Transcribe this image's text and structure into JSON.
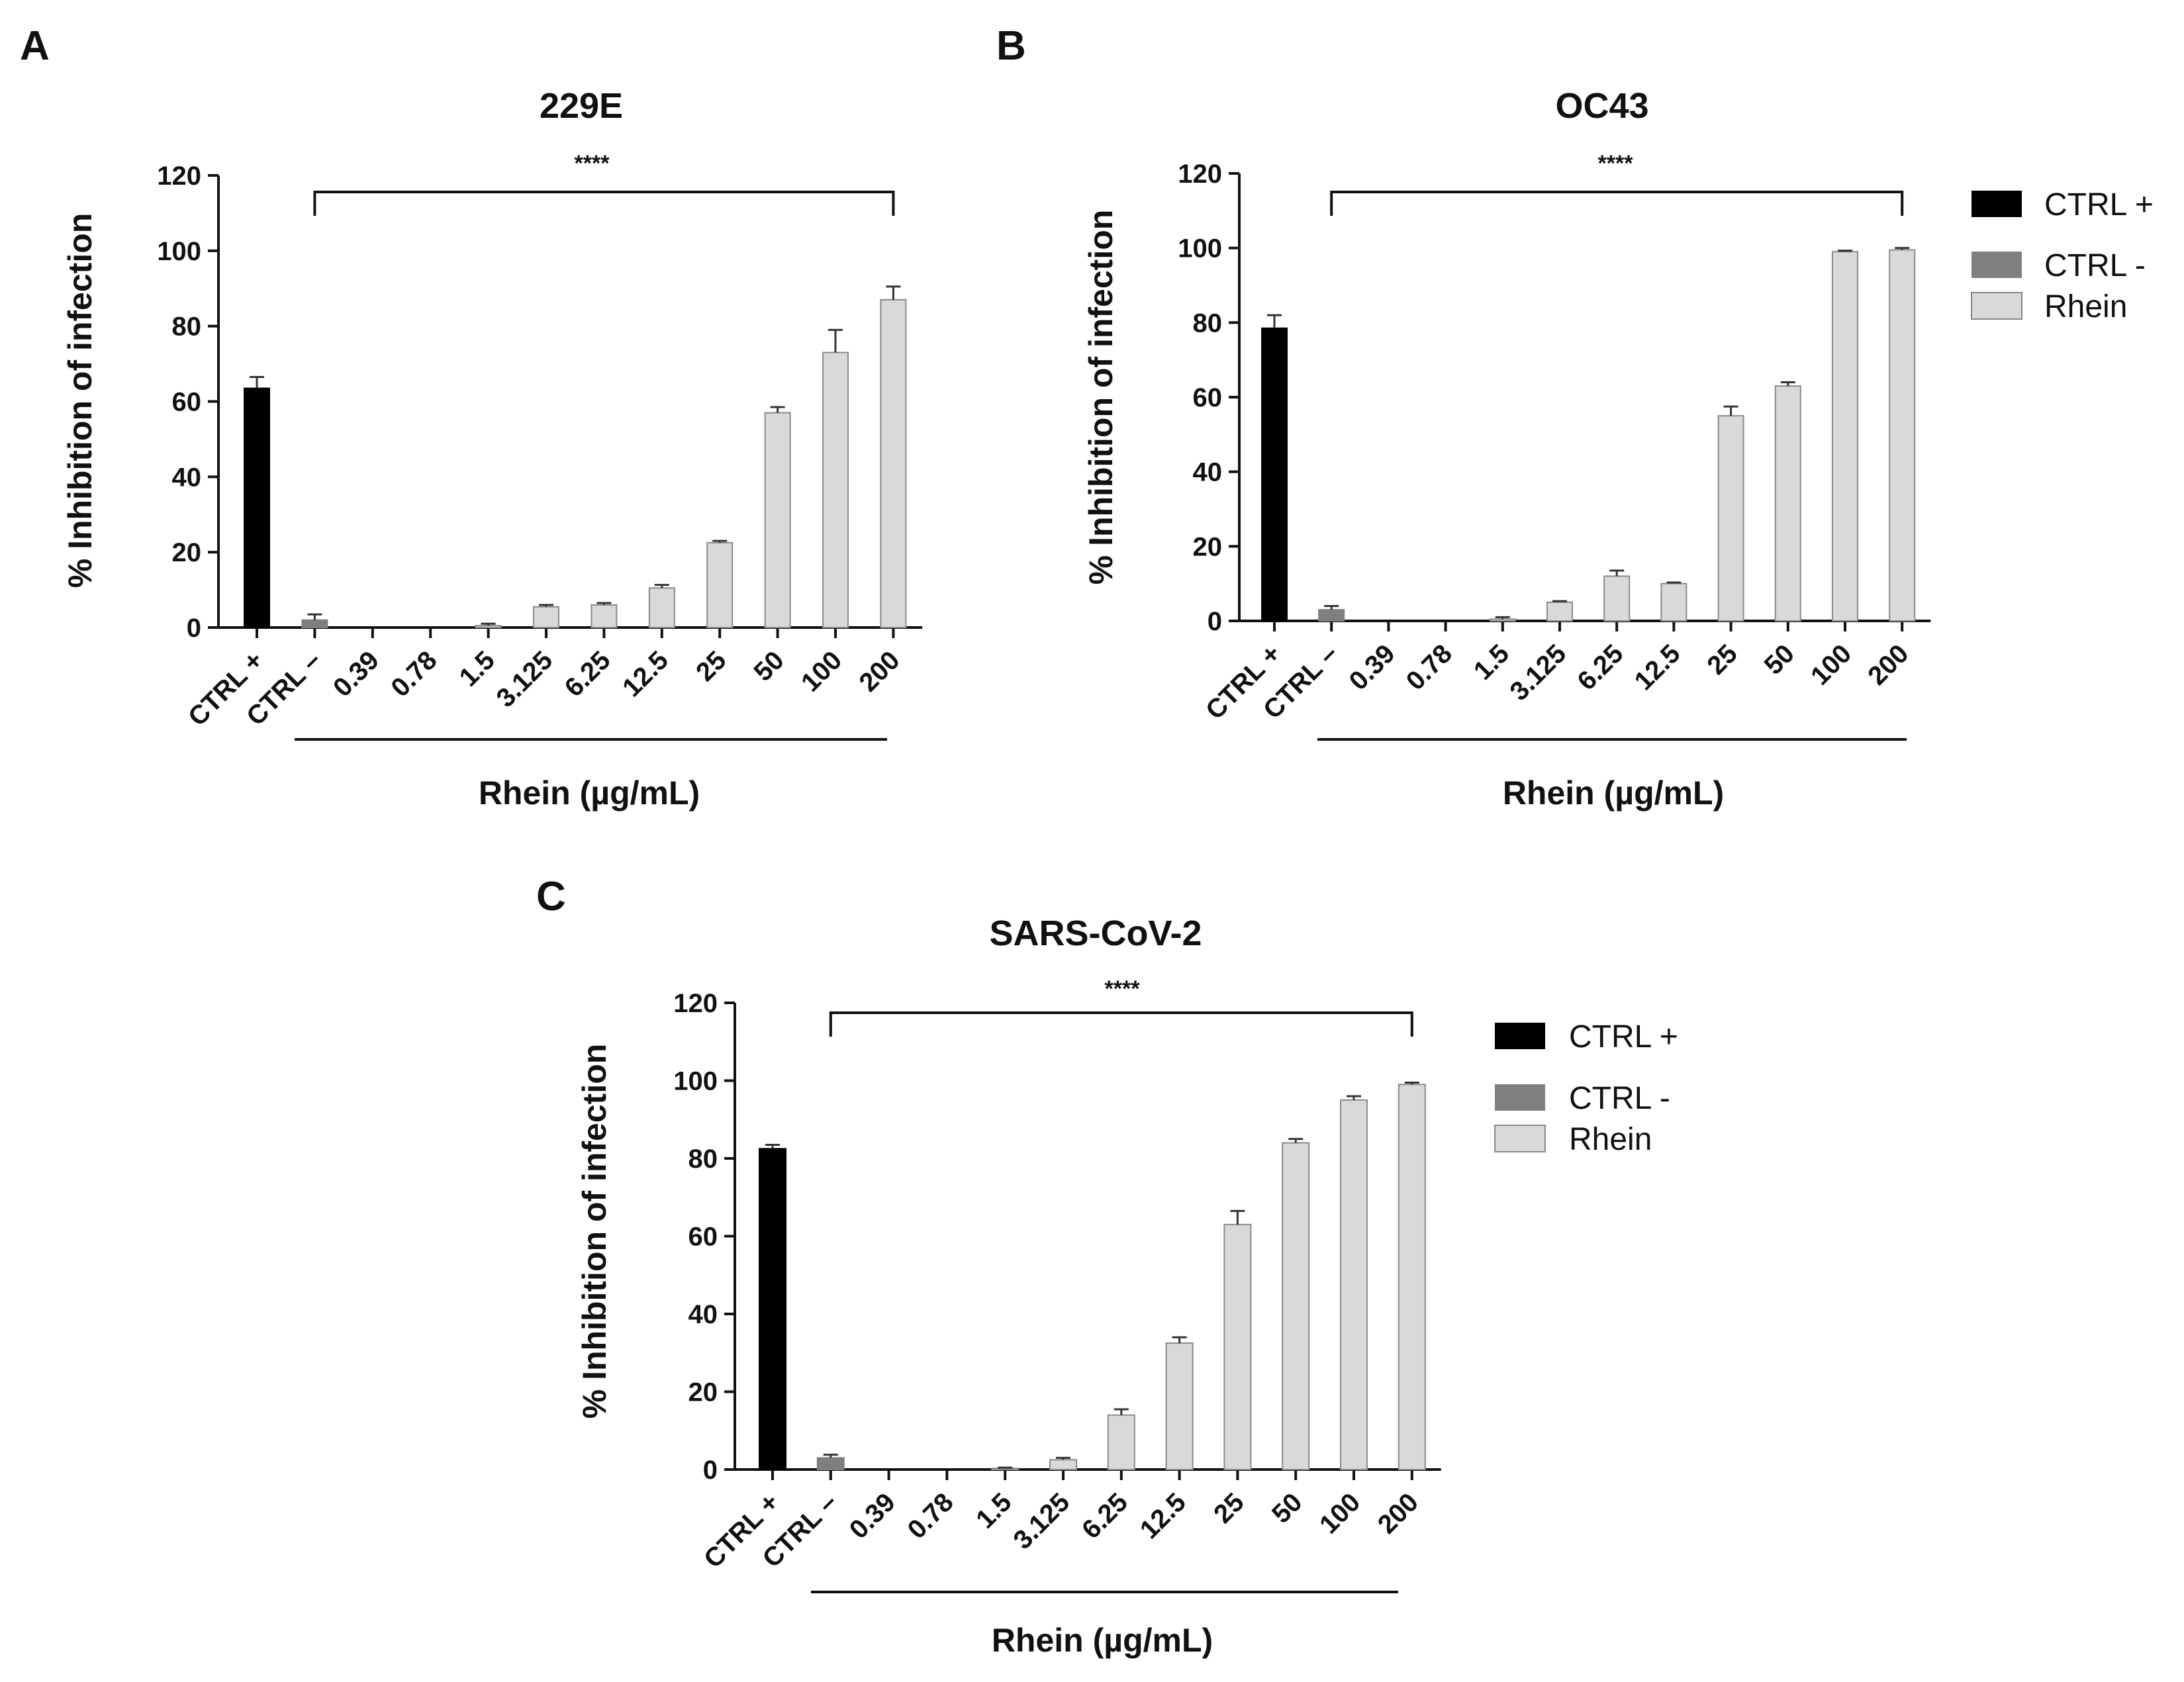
{
  "colors": {
    "ctrl_pos": "#000000",
    "ctrl_neg": "#7f7f7f",
    "rhein": "#d9d9d9",
    "axis": "#111111"
  },
  "legend": [
    {
      "label": "CTRL +",
      "color": "#000000"
    },
    {
      "label": "CTRL -",
      "color": "#7f7f7f"
    },
    {
      "label": "Rhein",
      "color": "#d9d9d9"
    }
  ],
  "chart_data": [
    {
      "panel": "A",
      "type": "bar",
      "title": "229E",
      "ylabel": "% Inhibition of infection",
      "xlabel": "Rhein (µg/mL)",
      "ylim": [
        0,
        120
      ],
      "yticks": [
        0,
        20,
        40,
        60,
        80,
        100,
        120
      ],
      "categories": [
        "CTRL +",
        "CTRL –",
        "0.39",
        "0.78",
        "1.5",
        "3.125",
        "6.25",
        "12.5",
        "25",
        "50",
        "100",
        "200"
      ],
      "values": [
        63.5,
        2.0,
        0,
        0,
        0.5,
        5.5,
        6.0,
        10.5,
        22.5,
        57.0,
        73.0,
        87.0
      ],
      "errors": [
        3.0,
        1.5,
        0,
        0,
        0.5,
        0.5,
        0.5,
        0.8,
        0.5,
        1.5,
        6.0,
        3.5
      ],
      "groups": [
        "ctrl_pos",
        "ctrl_neg",
        "rhein",
        "rhein",
        "rhein",
        "rhein",
        "rhein",
        "rhein",
        "rhein",
        "rhein",
        "rhein",
        "rhein"
      ],
      "significance": "****",
      "legend_shown": false
    },
    {
      "panel": "B",
      "type": "bar",
      "title": "OC43",
      "ylabel": "% Inhibition of infection",
      "xlabel": "Rhein (µg/mL)",
      "ylim": [
        0,
        120
      ],
      "yticks": [
        0,
        20,
        40,
        60,
        80,
        100,
        120
      ],
      "categories": [
        "CTRL +",
        "CTRL –",
        "0.39",
        "0.78",
        "1.5",
        "3.125",
        "6.25",
        "12.5",
        "25",
        "50",
        "100",
        "200"
      ],
      "values": [
        78.5,
        3.0,
        0,
        0,
        0.5,
        5.0,
        12.0,
        10.0,
        55.0,
        63.0,
        99.0,
        99.5
      ],
      "errors": [
        3.5,
        1.0,
        0,
        0,
        0.5,
        0.3,
        1.5,
        0.3,
        2.5,
        1.0,
        0.3,
        0.5
      ],
      "groups": [
        "ctrl_pos",
        "ctrl_neg",
        "rhein",
        "rhein",
        "rhein",
        "rhein",
        "rhein",
        "rhein",
        "rhein",
        "rhein",
        "rhein",
        "rhein"
      ],
      "significance": "****",
      "legend_shown": true
    },
    {
      "panel": "C",
      "type": "bar",
      "title": "SARS-CoV-2",
      "ylabel": "% Inhibition of infection",
      "xlabel": "Rhein (µg/mL)",
      "ylim": [
        0,
        120
      ],
      "yticks": [
        0,
        20,
        40,
        60,
        80,
        100,
        120
      ],
      "categories": [
        "CTRL +",
        "CTRL –",
        "0.39",
        "0.78",
        "1.5",
        "3.125",
        "6.25",
        "12.5",
        "25",
        "50",
        "100",
        "200"
      ],
      "values": [
        82.5,
        3.0,
        0,
        0,
        0.3,
        2.5,
        14.0,
        32.5,
        63.0,
        84.0,
        95.0,
        99.0
      ],
      "errors": [
        1.0,
        0.8,
        0,
        0,
        0.2,
        0.5,
        1.5,
        1.5,
        3.5,
        1.0,
        1.0,
        0.5
      ],
      "groups": [
        "ctrl_pos",
        "ctrl_neg",
        "rhein",
        "rhein",
        "rhein",
        "rhein",
        "rhein",
        "rhein",
        "rhein",
        "rhein",
        "rhein",
        "rhein"
      ],
      "significance": "****",
      "legend_shown": true
    }
  ]
}
